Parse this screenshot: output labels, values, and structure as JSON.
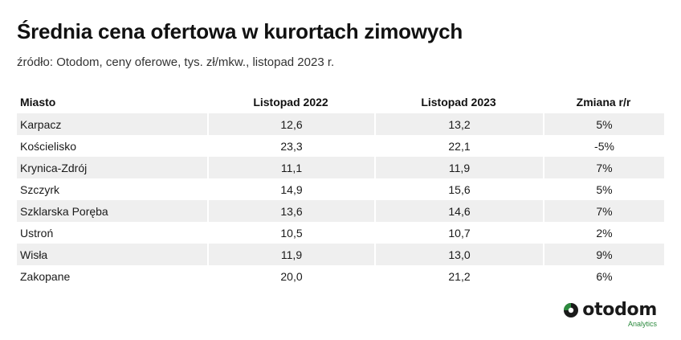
{
  "title": "Średnia cena ofertowa w kurortach zimowych",
  "subtitle": "źródło: Otodom, ceny oferowe, tys. zł/mkw., listopad 2023 r.",
  "chart_data": {
    "type": "table",
    "columns": [
      "Miasto",
      "Listopad 2022",
      "Listopad 2023",
      "Zmiana r/r"
    ],
    "rows": [
      [
        "Karpacz",
        "12,6",
        "13,2",
        "5%"
      ],
      [
        "Kościelisko",
        "23,3",
        "22,1",
        "-5%"
      ],
      [
        "Krynica-Zdrój",
        "11,1",
        "11,9",
        "7%"
      ],
      [
        "Szczyrk",
        "14,9",
        "15,6",
        "5%"
      ],
      [
        "Szklarska Poręba",
        "13,6",
        "14,6",
        "7%"
      ],
      [
        "Ustroń",
        "10,5",
        "10,7",
        "2%"
      ],
      [
        "Wisła",
        "11,9",
        "13,0",
        "9%"
      ],
      [
        "Zakopane",
        "20,0",
        "21,2",
        "6%"
      ]
    ]
  },
  "logo": {
    "name": "otodom",
    "sub": "Analytics",
    "colors": {
      "green": "#2c8a3e",
      "dark": "#1a1a1a"
    }
  }
}
